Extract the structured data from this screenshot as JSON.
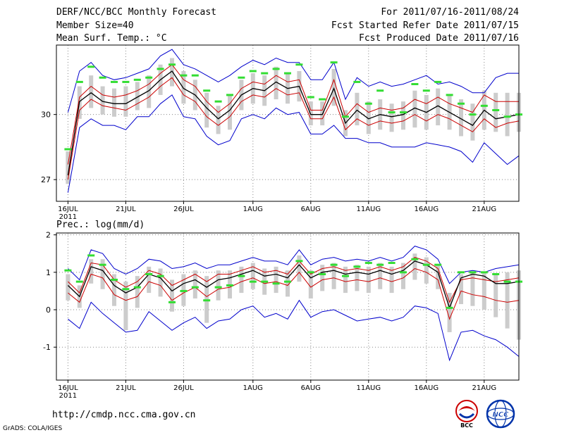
{
  "header": {
    "title": "DERF/NCC/BCC Monthly Forecast",
    "member": "Member Size=40",
    "variable": "Mean Surf. Temp.: °C",
    "period": "For 2011/07/16-2011/08/24",
    "refer": "Fcst Started Refer Date 2011/07/15",
    "produced": "Fcst Produced Date 2011/07/16"
  },
  "footer": {
    "url": "http://cmdp.ncc.cma.gov.cn",
    "grads": "GrADS: COLA/IGES"
  },
  "logos": {
    "bcc": "BCC",
    "ncc": "NCC"
  },
  "colors": {
    "spread_bar": "#cccccc",
    "ens_max_min": "#0000cc",
    "quartile": "#cc0000",
    "mean": "#000000",
    "observed": "#33dd33",
    "grid": "#888888"
  },
  "chart_data": [
    {
      "type": "line",
      "title": "Mean Surf. Temp.: °C",
      "x_ticks": [
        {
          "day": 1,
          "label": "16JUL",
          "sub": "2011"
        },
        {
          "day": 6,
          "label": "21JUL"
        },
        {
          "day": 11,
          "label": "26JUL"
        },
        {
          "day": 17,
          "label": "1AUG"
        },
        {
          "day": 22,
          "label": "6AUG"
        },
        {
          "day": 27,
          "label": "11AUG"
        },
        {
          "day": 32,
          "label": "16AUG"
        },
        {
          "day": 37,
          "label": "21AUG"
        }
      ],
      "y_ticks": [
        27,
        30
      ],
      "ylim": [
        26.0,
        33.2
      ],
      "xlim": [
        0,
        40
      ],
      "series": [
        {
          "name": "ensemble-max",
          "values": [
            30.1,
            32.0,
            32.4,
            31.8,
            31.6,
            31.7,
            31.9,
            32.1,
            32.7,
            33.0,
            32.3,
            32.1,
            31.8,
            31.5,
            31.8,
            32.2,
            32.5,
            32.3,
            32.6,
            32.4,
            32.4,
            31.6,
            31.6,
            32.4,
            30.7,
            31.7,
            31.3,
            31.5,
            31.3,
            31.4,
            31.6,
            31.8,
            31.4,
            31.5,
            31.3,
            31.0,
            31.0,
            31.7,
            31.9,
            31.9
          ]
        },
        {
          "name": "upper-quartile",
          "values": [
            27.7,
            30.8,
            31.3,
            30.9,
            30.8,
            30.9,
            31.1,
            31.4,
            31.9,
            32.3,
            31.6,
            31.3,
            30.6,
            30.1,
            30.5,
            31.2,
            31.5,
            31.4,
            31.8,
            31.5,
            31.6,
            30.2,
            30.2,
            31.6,
            29.9,
            30.5,
            30.1,
            30.3,
            30.2,
            30.3,
            30.7,
            30.5,
            30.8,
            30.5,
            30.3,
            30.1,
            30.9,
            30.6,
            30.6,
            30.6
          ]
        },
        {
          "name": "mean",
          "values": [
            27.2,
            30.6,
            31.0,
            30.6,
            30.5,
            30.5,
            30.8,
            31.1,
            31.6,
            32.0,
            31.2,
            30.9,
            30.3,
            29.8,
            30.2,
            30.9,
            31.2,
            31.1,
            31.5,
            31.2,
            31.3,
            30.0,
            30.0,
            31.2,
            29.6,
            30.2,
            29.8,
            30.0,
            29.9,
            30.0,
            30.3,
            30.1,
            30.4,
            30.1,
            29.8,
            29.5,
            30.2,
            29.8,
            29.9,
            30.0
          ]
        },
        {
          "name": "lower-quartile",
          "values": [
            27.0,
            30.2,
            30.7,
            30.4,
            30.3,
            30.2,
            30.5,
            30.8,
            31.3,
            31.7,
            30.9,
            30.6,
            29.9,
            29.5,
            29.9,
            30.6,
            30.9,
            30.8,
            31.2,
            30.9,
            31.0,
            29.8,
            29.8,
            30.8,
            29.3,
            29.8,
            29.5,
            29.7,
            29.6,
            29.7,
            30.0,
            29.7,
            30.0,
            29.8,
            29.5,
            29.2,
            29.8,
            29.4,
            29.6,
            29.7
          ]
        },
        {
          "name": "ensemble-min",
          "values": [
            26.4,
            29.4,
            29.8,
            29.5,
            29.5,
            29.3,
            29.9,
            29.9,
            30.5,
            30.9,
            29.9,
            29.8,
            29.0,
            28.6,
            28.8,
            29.8,
            30.0,
            29.8,
            30.3,
            30.0,
            30.1,
            29.1,
            29.1,
            29.5,
            28.9,
            28.9,
            28.7,
            28.7,
            28.5,
            28.5,
            28.5,
            28.7,
            28.6,
            28.5,
            28.3,
            27.8,
            28.7,
            28.2,
            27.7,
            28.1
          ]
        },
        {
          "name": "spread-bar-top",
          "values": [
            28.3,
            31.3,
            31.8,
            31.3,
            31.2,
            31.3,
            31.5,
            31.8,
            32.3,
            32.6,
            32.0,
            31.6,
            31.0,
            30.4,
            30.9,
            31.6,
            31.9,
            31.8,
            32.2,
            31.9,
            32.0,
            30.6,
            30.6,
            32.1,
            30.2,
            31.0,
            30.6,
            30.7,
            30.5,
            30.6,
            31.1,
            30.9,
            31.2,
            30.9,
            30.7,
            30.5,
            31.1,
            31.0,
            31.0,
            31.0
          ]
        },
        {
          "name": "spread-bar-bottom",
          "values": [
            26.8,
            29.8,
            30.3,
            30.0,
            29.9,
            29.9,
            30.2,
            30.3,
            30.9,
            31.3,
            30.5,
            30.2,
            29.4,
            29.1,
            29.3,
            30.2,
            30.5,
            30.4,
            30.7,
            30.5,
            30.6,
            29.5,
            29.5,
            30.4,
            29.0,
            29.5,
            29.1,
            29.3,
            29.2,
            29.3,
            29.4,
            29.3,
            29.5,
            29.3,
            29.0,
            28.8,
            29.3,
            29.2,
            29.0,
            29.2
          ]
        },
        {
          "name": "observed",
          "values": [
            28.4,
            31.5,
            32.2,
            31.7,
            31.5,
            31.5,
            31.6,
            31.7,
            32.1,
            32.3,
            31.8,
            31.8,
            31.1,
            30.6,
            30.9,
            31.7,
            32.0,
            31.9,
            32.1,
            31.9,
            32.3,
            30.8,
            30.7,
            32.4,
            29.9,
            31.5,
            30.5,
            31.1,
            30.1,
            30.1,
            31.4,
            31.1,
            31.5,
            30.9,
            30.5,
            30.0,
            30.4,
            30.2,
            29.9,
            30.0
          ]
        }
      ]
    },
    {
      "type": "line",
      "title": "Prec.: log(mm/d)",
      "x_ticks": [
        {
          "day": 1,
          "label": "16JUL",
          "sub": "2011"
        },
        {
          "day": 6,
          "label": "21JUL"
        },
        {
          "day": 11,
          "label": "26JUL"
        },
        {
          "day": 17,
          "label": "1AUG"
        },
        {
          "day": 22,
          "label": "6AUG"
        },
        {
          "day": 27,
          "label": "11AUG"
        },
        {
          "day": 32,
          "label": "16AUG"
        },
        {
          "day": 37,
          "label": "21AUG"
        }
      ],
      "y_ticks": [
        -1,
        0,
        1,
        2
      ],
      "ylim": [
        -1.88,
        2.05
      ],
      "xlim": [
        0,
        40
      ],
      "series": [
        {
          "name": "ensemble-max",
          "values": [
            1.1,
            0.8,
            1.6,
            1.5,
            1.1,
            0.95,
            1.1,
            1.35,
            1.3,
            1.1,
            1.15,
            1.25,
            1.1,
            1.2,
            1.2,
            1.3,
            1.4,
            1.3,
            1.3,
            1.2,
            1.6,
            1.2,
            1.35,
            1.4,
            1.3,
            1.35,
            1.3,
            1.4,
            1.3,
            1.4,
            1.7,
            1.6,
            1.35,
            0.7,
            1.0,
            1.05,
            1.0,
            1.1,
            1.15,
            1.2
          ]
        },
        {
          "name": "upper-quartile",
          "values": [
            0.75,
            0.45,
            1.25,
            1.2,
            0.8,
            0.6,
            0.75,
            1.05,
            0.95,
            0.65,
            0.8,
            0.95,
            0.75,
            0.95,
            0.95,
            1.05,
            1.15,
            1.0,
            1.05,
            0.95,
            1.3,
            0.95,
            1.1,
            1.15,
            1.05,
            1.1,
            1.05,
            1.15,
            1.05,
            1.15,
            1.4,
            1.3,
            1.1,
            0.2,
            0.8,
            0.85,
            0.8,
            0.75,
            0.8,
            0.85
          ]
        },
        {
          "name": "mean",
          "values": [
            0.65,
            0.35,
            1.15,
            1.05,
            0.65,
            0.45,
            0.6,
            0.95,
            0.85,
            0.5,
            0.7,
            0.8,
            0.6,
            0.8,
            0.85,
            0.95,
            1.05,
            0.9,
            0.95,
            0.85,
            1.2,
            0.85,
            1.0,
            1.05,
            0.95,
            1.0,
            0.95,
            1.05,
            0.95,
            1.05,
            1.3,
            1.2,
            1.0,
            0.05,
            0.85,
            0.95,
            0.9,
            0.7,
            0.7,
            0.75
          ]
        },
        {
          "name": "lower-quartile",
          "values": [
            0.45,
            0.2,
            0.95,
            0.85,
            0.4,
            0.25,
            0.35,
            0.75,
            0.65,
            0.25,
            0.45,
            0.6,
            0.35,
            0.55,
            0.6,
            0.75,
            0.85,
            0.7,
            0.75,
            0.65,
            1.0,
            0.6,
            0.8,
            0.85,
            0.75,
            0.8,
            0.75,
            0.85,
            0.75,
            0.85,
            1.1,
            1.0,
            0.8,
            -0.25,
            0.5,
            0.4,
            0.35,
            0.25,
            0.2,
            0.25
          ]
        },
        {
          "name": "ensemble-min",
          "values": [
            -0.25,
            -0.5,
            0.2,
            -0.1,
            -0.35,
            -0.6,
            -0.55,
            -0.05,
            -0.3,
            -0.55,
            -0.35,
            -0.2,
            -0.5,
            -0.3,
            -0.25,
            0.0,
            0.1,
            -0.2,
            -0.1,
            -0.25,
            0.25,
            -0.2,
            -0.05,
            0.0,
            -0.15,
            -0.3,
            -0.25,
            -0.2,
            -0.3,
            -0.2,
            0.1,
            0.05,
            -0.1,
            -1.35,
            -0.6,
            -0.55,
            -0.7,
            -0.8,
            -1.0,
            -1.25
          ]
        },
        {
          "name": "spread-bar-top",
          "values": [
            0.95,
            0.65,
            1.35,
            1.35,
            0.95,
            0.75,
            0.9,
            1.15,
            1.1,
            0.8,
            0.95,
            1.05,
            0.9,
            1.05,
            1.05,
            1.15,
            1.25,
            1.1,
            1.15,
            1.05,
            1.45,
            1.05,
            1.2,
            1.25,
            1.15,
            1.2,
            1.15,
            1.25,
            1.15,
            1.25,
            1.5,
            1.4,
            1.2,
            0.45,
            0.95,
            1.0,
            1.0,
            0.95,
            1.0,
            1.05
          ]
        },
        {
          "name": "spread-bar-bottom",
          "values": [
            0.25,
            0.05,
            0.7,
            0.55,
            0.1,
            -0.55,
            0.05,
            0.45,
            0.35,
            -0.05,
            0.1,
            0.3,
            -0.35,
            0.25,
            0.3,
            0.45,
            0.55,
            0.4,
            0.45,
            0.35,
            0.75,
            0.3,
            0.5,
            0.55,
            0.45,
            0.5,
            0.45,
            0.55,
            0.45,
            0.55,
            0.8,
            0.7,
            0.55,
            -0.6,
            0.15,
            0.1,
            0.0,
            -0.2,
            -0.5,
            -0.8
          ]
        },
        {
          "name": "observed",
          "values": [
            1.05,
            0.75,
            1.45,
            1.2,
            0.8,
            0.55,
            0.6,
            0.95,
            0.9,
            0.2,
            0.5,
            0.6,
            0.25,
            0.6,
            0.65,
            0.9,
            0.75,
            0.75,
            0.7,
            0.75,
            1.3,
            1.0,
            0.95,
            1.2,
            0.9,
            1.15,
            1.25,
            1.2,
            1.25,
            1.0,
            1.35,
            1.2,
            1.2,
            0.05,
            1.0,
            1.0,
            1.0,
            0.95,
            0.75,
            0.75
          ]
        }
      ]
    }
  ]
}
